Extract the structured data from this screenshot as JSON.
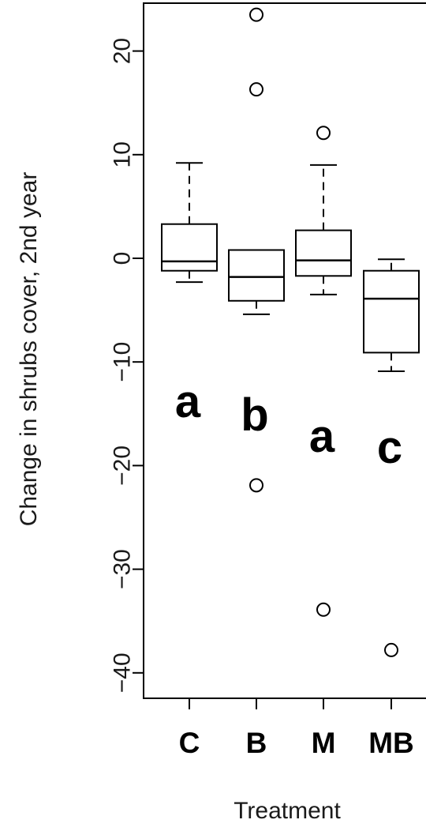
{
  "chart_data": {
    "type": "box",
    "ylabel": "Change in shrubs cover, 2nd year",
    "xlabel": "Treatment",
    "ylim": [
      -42.5,
      24.5
    ],
    "yticks": [
      20,
      10,
      0,
      -10,
      -20,
      -30,
      -40
    ],
    "ytick_labels": [
      "20",
      "10",
      "0",
      "−10",
      "−20",
      "−30",
      "−40"
    ],
    "categories": [
      "C",
      "B",
      "M",
      "MB"
    ],
    "boxes": [
      {
        "category": "C",
        "whisker_low": -2.3,
        "q1": -1.2,
        "median": -0.3,
        "q3": 3.3,
        "whisker_high": 9.2,
        "outliers": [],
        "letter": "a"
      },
      {
        "category": "B",
        "whisker_low": -5.4,
        "q1": -4.1,
        "median": -1.8,
        "q3": 0.8,
        "whisker_high": 0.8,
        "outliers": [
          23.5,
          16.3,
          -21.9
        ],
        "letter": "b"
      },
      {
        "category": "M",
        "whisker_low": -3.5,
        "q1": -1.7,
        "median": -0.2,
        "q3": 2.7,
        "whisker_high": 9.0,
        "outliers": [
          12.1,
          -33.9
        ],
        "letter": "a"
      },
      {
        "category": "MB",
        "whisker_low": -10.9,
        "q1": -9.1,
        "median": -3.9,
        "q3": -1.2,
        "whisker_high": -0.1,
        "outliers": [
          -37.8
        ],
        "letter": "c"
      }
    ],
    "grid": false,
    "colors": {
      "line": "#000000",
      "box_fill": "#ffffff"
    }
  }
}
